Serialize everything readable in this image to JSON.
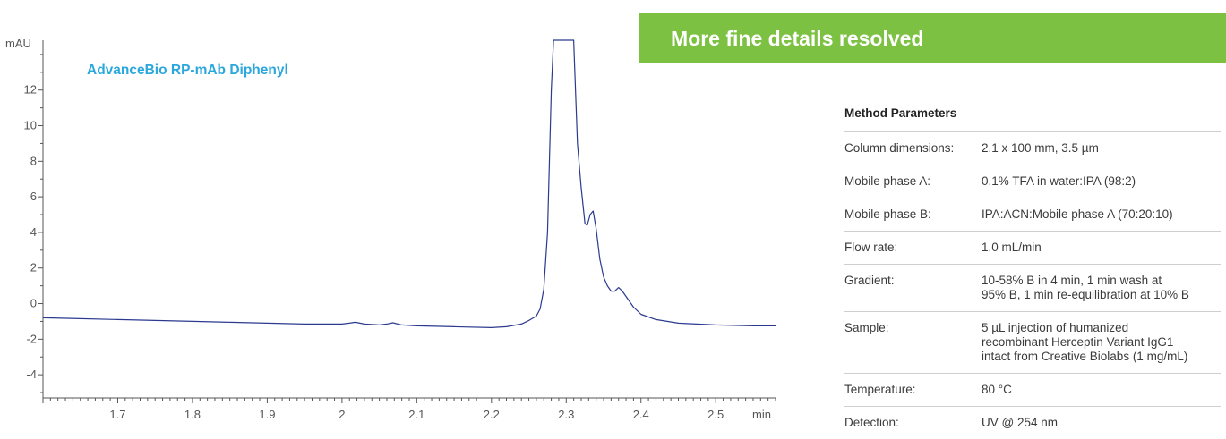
{
  "colors": {
    "trace": "#2b3a8f",
    "chart_title": "#2aa7dc",
    "banner_bg": "#7cc142",
    "axis": "#555555"
  },
  "banner": {
    "text": "More fine details resolved"
  },
  "method": {
    "title": "Method Parameters",
    "rows": [
      {
        "label": "Column dimensions:",
        "value": "2.1 x 100 mm, 3.5 µm"
      },
      {
        "label": "Mobile phase A:",
        "value": "0.1% TFA in water:IPA (98:2)"
      },
      {
        "label": "Mobile phase B:",
        "value": "IPA:ACN:Mobile phase A (70:20:10)"
      },
      {
        "label": "Flow rate:",
        "value": "1.0 mL/min"
      },
      {
        "label": "Gradient:",
        "value": "10-58% B in 4 min, 1 min wash at\n95% B, 1 min re-equilibration at 10% B"
      },
      {
        "label": "Sample:",
        "value": "5 µL injection of humanized\nrecombinant Herceptin Variant IgG1\nintact from Creative Biolabs  (1 mg/mL)"
      },
      {
        "label": "Temperature:",
        "value": "80 °C"
      },
      {
        "label": "Detection:",
        "value": "UV @ 254 nm"
      }
    ]
  },
  "chart_data": {
    "type": "line",
    "title": "AdvanceBio RP-mAb Diphenyl",
    "xlabel": "min",
    "ylabel": "mAU",
    "xlim": [
      1.6,
      2.58
    ],
    "ylim": [
      -5.3,
      14.8
    ],
    "x_ticks": [
      1.7,
      1.8,
      1.9,
      2,
      2.1,
      2.2,
      2.3,
      2.4,
      2.5
    ],
    "y_ticks": [
      -4,
      -2,
      0,
      2,
      4,
      6,
      8,
      10,
      12
    ],
    "grid": false,
    "series": [
      {
        "x": [
          1.6,
          1.65,
          1.7,
          1.75,
          1.8,
          1.85,
          1.9,
          1.95,
          2.0,
          2.01,
          2.018,
          2.03,
          2.05,
          2.06,
          2.068,
          2.08,
          2.1,
          2.15,
          2.2,
          2.22,
          2.24,
          2.25,
          2.26,
          2.265,
          2.27,
          2.275,
          2.28,
          2.283,
          2.295,
          2.31,
          2.315,
          2.32,
          2.325,
          2.328,
          2.332,
          2.336,
          2.34,
          2.345,
          2.35,
          2.355,
          2.36,
          2.365,
          2.37,
          2.375,
          2.38,
          2.39,
          2.4,
          2.42,
          2.45,
          2.5,
          2.55,
          2.58
        ],
        "y": [
          -0.8,
          -0.85,
          -0.9,
          -0.95,
          -1.0,
          -1.05,
          -1.1,
          -1.15,
          -1.15,
          -1.1,
          -1.05,
          -1.15,
          -1.2,
          -1.15,
          -1.08,
          -1.2,
          -1.25,
          -1.3,
          -1.35,
          -1.3,
          -1.15,
          -0.95,
          -0.7,
          -0.3,
          0.8,
          4.0,
          12.0,
          14.8,
          14.8,
          14.8,
          9.0,
          6.5,
          4.5,
          4.4,
          5.0,
          5.2,
          4.2,
          2.5,
          1.5,
          1.0,
          0.7,
          0.7,
          0.9,
          0.7,
          0.4,
          -0.2,
          -0.6,
          -0.9,
          -1.1,
          -1.2,
          -1.25,
          -1.25
        ]
      }
    ]
  }
}
